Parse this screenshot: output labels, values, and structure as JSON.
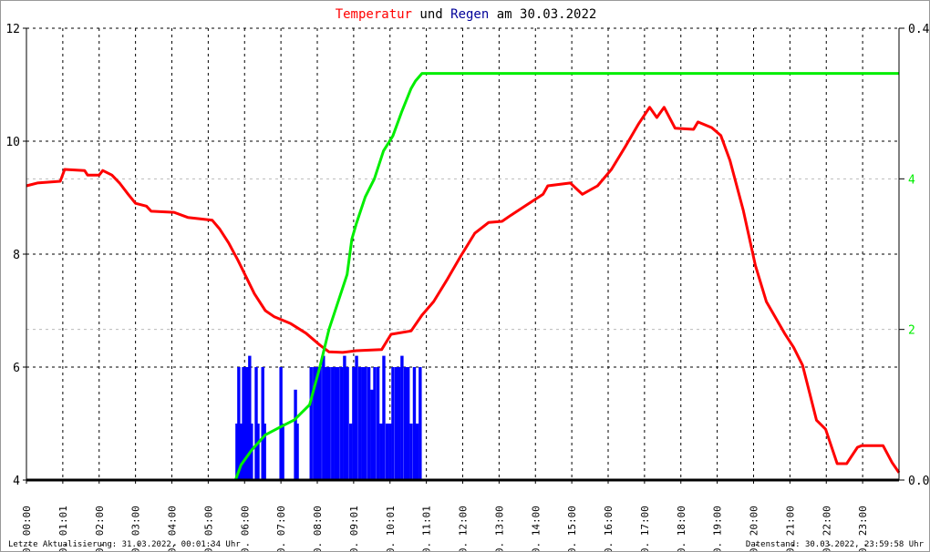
{
  "chart_data": {
    "type": "line",
    "title": {
      "parts": [
        {
          "text": "Temperatur",
          "color": "#ff0000"
        },
        {
          "text": " und ",
          "color": "#000000"
        },
        {
          "text": "Regen",
          "color": "#000099"
        },
        {
          "text": " am 30.03.2022",
          "color": "#000000"
        }
      ]
    },
    "x_range_hours": [
      0,
      24
    ],
    "x_ticks": [
      {
        "h": 0,
        "label": "30. 00:00"
      },
      {
        "h": 1,
        "label": "30. 01:01"
      },
      {
        "h": 2,
        "label": "30. 02:00"
      },
      {
        "h": 3,
        "label": "30. 03:00"
      },
      {
        "h": 4,
        "label": "30. 04:00"
      },
      {
        "h": 5,
        "label": "30. 05:00"
      },
      {
        "h": 6,
        "label": "30. 06:00"
      },
      {
        "h": 7,
        "label": "30. 07:00"
      },
      {
        "h": 8,
        "label": "30. 08:00"
      },
      {
        "h": 9,
        "label": "30. 09:01"
      },
      {
        "h": 10,
        "label": "30. 10:01"
      },
      {
        "h": 11,
        "label": "30. 11:01"
      },
      {
        "h": 12,
        "label": "30. 12:00"
      },
      {
        "h": 13,
        "label": "30. 13:00"
      },
      {
        "h": 14,
        "label": "30. 14:00"
      },
      {
        "h": 15,
        "label": "30. 15:00"
      },
      {
        "h": 16,
        "label": "30. 16:00"
      },
      {
        "h": 17,
        "label": "30. 17:00"
      },
      {
        "h": 18,
        "label": "30. 18:00"
      },
      {
        "h": 19,
        "label": "30. 19:00"
      },
      {
        "h": 20,
        "label": "30. 20:00"
      },
      {
        "h": 21,
        "label": "30. 21:00"
      },
      {
        "h": 22,
        "label": "30. 22:00"
      },
      {
        "h": 23,
        "label": "30. 23:00"
      }
    ],
    "y_left": {
      "range": [
        4,
        12
      ],
      "ticks": [
        "4",
        "6",
        "8",
        "10",
        "12"
      ],
      "color": "#000000"
    },
    "y_right_rain": {
      "range": [
        0.0,
        0.4
      ],
      "ticks": [
        "0.0",
        "0.4"
      ],
      "color": "#000000"
    },
    "y_right_sum": {
      "range": [
        0,
        6
      ],
      "ticks": [
        "2",
        "4"
      ],
      "color": "#00ee00"
    },
    "grid": true,
    "series": [
      {
        "kind": "temperature",
        "color": "#ff0000",
        "axis": "left",
        "points": [
          [
            0,
            9.21
          ],
          [
            0.3,
            9.26
          ],
          [
            0.93,
            9.29
          ],
          [
            1.05,
            9.5
          ],
          [
            1.6,
            9.48
          ],
          [
            1.68,
            9.4
          ],
          [
            2.0,
            9.4
          ],
          [
            2.1,
            9.48
          ],
          [
            2.35,
            9.4
          ],
          [
            2.56,
            9.26
          ],
          [
            2.8,
            9.06
          ],
          [
            3.0,
            8.9
          ],
          [
            3.3,
            8.85
          ],
          [
            3.43,
            8.76
          ],
          [
            4.06,
            8.74
          ],
          [
            4.44,
            8.65
          ],
          [
            5.11,
            8.6
          ],
          [
            5.31,
            8.45
          ],
          [
            5.56,
            8.2
          ],
          [
            5.81,
            7.9
          ],
          [
            6.0,
            7.65
          ],
          [
            6.27,
            7.3
          ],
          [
            6.57,
            7.0
          ],
          [
            6.82,
            6.89
          ],
          [
            7.27,
            6.77
          ],
          [
            7.69,
            6.6
          ],
          [
            8.07,
            6.39
          ],
          [
            8.32,
            6.27
          ],
          [
            8.7,
            6.26
          ],
          [
            9.07,
            6.29
          ],
          [
            9.77,
            6.31
          ],
          [
            10.03,
            6.58
          ],
          [
            10.58,
            6.64
          ],
          [
            10.88,
            6.92
          ],
          [
            11.2,
            7.16
          ],
          [
            11.58,
            7.56
          ],
          [
            11.95,
            7.97
          ],
          [
            12.33,
            8.37
          ],
          [
            12.71,
            8.56
          ],
          [
            13.08,
            8.58
          ],
          [
            13.33,
            8.69
          ],
          [
            13.71,
            8.85
          ],
          [
            14.21,
            9.06
          ],
          [
            14.34,
            9.21
          ],
          [
            14.96,
            9.26
          ],
          [
            15.29,
            9.06
          ],
          [
            15.71,
            9.21
          ],
          [
            16.09,
            9.5
          ],
          [
            16.47,
            9.9
          ],
          [
            16.84,
            10.31
          ],
          [
            17.14,
            10.6
          ],
          [
            17.34,
            10.42
          ],
          [
            17.54,
            10.6
          ],
          [
            17.84,
            10.23
          ],
          [
            18.35,
            10.21
          ],
          [
            18.47,
            10.34
          ],
          [
            18.85,
            10.24
          ],
          [
            19.1,
            10.1
          ],
          [
            19.35,
            9.66
          ],
          [
            19.72,
            8.77
          ],
          [
            20.05,
            7.8
          ],
          [
            20.35,
            7.16
          ],
          [
            20.85,
            6.6
          ],
          [
            21.1,
            6.35
          ],
          [
            21.35,
            6.03
          ],
          [
            21.73,
            5.06
          ],
          [
            21.98,
            4.9
          ],
          [
            22.3,
            4.29
          ],
          [
            22.56,
            4.29
          ],
          [
            22.86,
            4.58
          ],
          [
            22.98,
            4.61
          ],
          [
            23.56,
            4.61
          ],
          [
            23.81,
            4.31
          ],
          [
            24,
            4.13
          ]
        ]
      },
      {
        "kind": "rain-sum",
        "color": "#00ee00",
        "axis": "right_sum",
        "points": [
          [
            0,
            0
          ],
          [
            5.75,
            0
          ],
          [
            5.9,
            0.2
          ],
          [
            6.2,
            0.4
          ],
          [
            6.57,
            0.6
          ],
          [
            6.97,
            0.7
          ],
          [
            7.37,
            0.8
          ],
          [
            7.79,
            1.0
          ],
          [
            8.07,
            1.5
          ],
          [
            8.32,
            2.0
          ],
          [
            8.82,
            2.73
          ],
          [
            8.95,
            3.2
          ],
          [
            9.07,
            3.4
          ],
          [
            9.32,
            3.76
          ],
          [
            9.57,
            4.0
          ],
          [
            9.82,
            4.37
          ],
          [
            10.08,
            4.57
          ],
          [
            10.33,
            4.9
          ],
          [
            10.58,
            5.2
          ],
          [
            10.7,
            5.3
          ],
          [
            10.88,
            5.4
          ],
          [
            24,
            5.4
          ]
        ]
      },
      {
        "kind": "rain",
        "color": "#0000ff",
        "axis": "right_rain",
        "type": "bar",
        "points": [
          [
            5.79,
            0.05
          ],
          [
            5.84,
            0.1
          ],
          [
            5.89,
            0.05
          ],
          [
            5.97,
            0.1
          ],
          [
            6.02,
            0.1
          ],
          [
            6.09,
            0.1
          ],
          [
            6.14,
            0.11
          ],
          [
            6.19,
            0.05
          ],
          [
            6.32,
            0.1
          ],
          [
            6.37,
            0.05
          ],
          [
            6.5,
            0.1
          ],
          [
            6.55,
            0.05
          ],
          [
            7.0,
            0.1
          ],
          [
            7.05,
            0.05
          ],
          [
            7.4,
            0.08
          ],
          [
            7.45,
            0.05
          ],
          [
            7.83,
            0.1
          ],
          [
            7.92,
            0.1
          ],
          [
            8.0,
            0.1
          ],
          [
            8.08,
            0.1
          ],
          [
            8.17,
            0.11
          ],
          [
            8.25,
            0.1
          ],
          [
            8.33,
            0.1
          ],
          [
            8.42,
            0.1
          ],
          [
            8.5,
            0.1
          ],
          [
            8.58,
            0.1
          ],
          [
            8.67,
            0.1
          ],
          [
            8.75,
            0.11
          ],
          [
            8.83,
            0.1
          ],
          [
            8.92,
            0.05
          ],
          [
            9.0,
            0.1
          ],
          [
            9.08,
            0.11
          ],
          [
            9.17,
            0.1
          ],
          [
            9.25,
            0.1
          ],
          [
            9.33,
            0.1
          ],
          [
            9.42,
            0.1
          ],
          [
            9.5,
            0.08
          ],
          [
            9.58,
            0.1
          ],
          [
            9.67,
            0.1
          ],
          [
            9.75,
            0.05
          ],
          [
            9.83,
            0.11
          ],
          [
            9.92,
            0.05
          ],
          [
            10.0,
            0.05
          ],
          [
            10.08,
            0.1
          ],
          [
            10.17,
            0.1
          ],
          [
            10.25,
            0.1
          ],
          [
            10.33,
            0.11
          ],
          [
            10.42,
            0.1
          ],
          [
            10.5,
            0.1
          ],
          [
            10.58,
            0.05
          ],
          [
            10.67,
            0.1
          ],
          [
            10.75,
            0.05
          ],
          [
            10.83,
            0.1
          ]
        ]
      }
    ]
  },
  "footer": {
    "left": "Letzte Aktualisierung: 31.03.2022, 00:01:34 Uhr",
    "right": "Datenstand: 30.03.2022, 23:59:58 Uhr"
  }
}
